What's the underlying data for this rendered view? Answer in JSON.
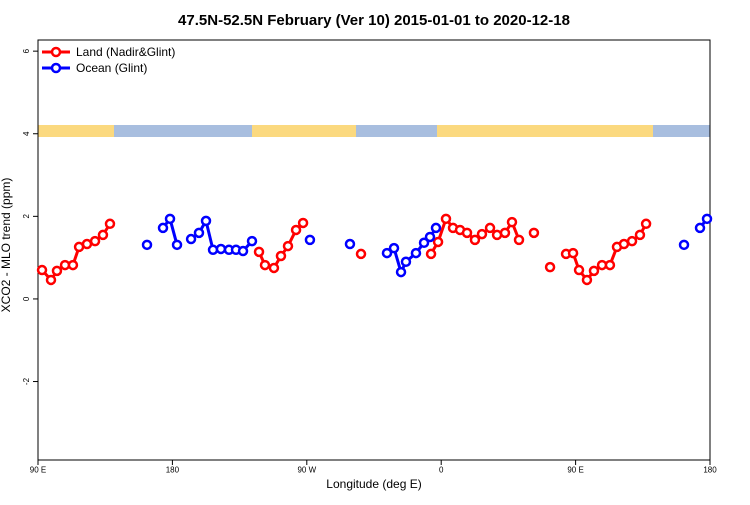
{
  "chart_data": {
    "type": "line",
    "title": "47.5N-52.5N February (Ver 10)   2015-01-01 to 2020-12-18",
    "x_label": "Longitude (deg E)",
    "y_label": "XCO2 - MLO trend (ppm)",
    "xlim": [
      90,
      540
    ],
    "ylim": [
      -3.9,
      6.27
    ],
    "xticks": [
      {
        "value": 90,
        "label": "90 E"
      },
      180,
      {
        "value": 270,
        "label": "90 W"
      },
      {
        "value": 360,
        "label": "0"
      },
      {
        "value": 450,
        "label": "90 E"
      },
      {
        "value": 540,
        "label": "180"
      }
    ],
    "yticks": [
      -2,
      0,
      2,
      4,
      6
    ],
    "legend": "top-left",
    "series": [
      {
        "name": "Land (Nadir&Glint)",
        "color": "#ff0000",
        "x": [
          92.7,
          98.7,
          102.7,
          108.1,
          113.4,
          117.5,
          122.8,
          128.2,
          133.5,
          138.2,
          null,
          238.0,
          242.0,
          248.0,
          252.7,
          257.4,
          262.8,
          267.5,
          null,
          306.3,
          null,
          353.2,
          357.9,
          363.2,
          367.9,
          372.6,
          377.3,
          382.6,
          387.3,
          392.7,
          397.4,
          402.7,
          407.4,
          412.1,
          null,
          422.1,
          null,
          432.9,
          null,
          443.6,
          448.3,
          452.3,
          457.6,
          462.3,
          467.7,
          473.0,
          477.7,
          482.4,
          487.8,
          493.1,
          497.2
        ],
        "values": [
          0.7,
          0.46,
          0.68,
          0.82,
          0.82,
          1.26,
          1.33,
          1.4,
          1.55,
          1.82,
          null,
          1.14,
          0.82,
          0.75,
          1.04,
          1.28,
          1.67,
          1.84,
          null,
          1.09,
          null,
          1.09,
          1.38,
          1.94,
          1.72,
          1.67,
          1.6,
          1.43,
          1.57,
          1.72,
          1.55,
          1.6,
          1.86,
          1.43,
          null,
          1.6,
          null,
          0.77,
          null,
          1.09,
          1.11,
          0.7,
          0.46,
          0.68,
          0.82,
          0.82,
          1.26,
          1.33,
          1.4,
          1.55,
          1.82
        ]
      },
      {
        "name": "Ocean (Glint)",
        "color": "#0000ff",
        "x": [
          163.0,
          null,
          173.7,
          178.4,
          183.1,
          null,
          192.5,
          197.8,
          202.5,
          207.2,
          212.5,
          217.9,
          222.6,
          227.3,
          233.3,
          null,
          272.1,
          null,
          298.9,
          null,
          323.7,
          328.4,
          333.1,
          336.4,
          343.1,
          348.5,
          352.5,
          356.5,
          null,
          522.6,
          null,
          533.3,
          538.0
        ],
        "values": [
          1.31,
          null,
          1.72,
          1.94,
          1.31,
          null,
          1.45,
          1.6,
          1.89,
          1.19,
          1.21,
          1.19,
          1.19,
          1.16,
          1.4,
          null,
          1.43,
          null,
          1.33,
          null,
          1.11,
          1.23,
          0.65,
          0.9,
          1.11,
          1.36,
          1.5,
          1.72,
          null,
          1.31,
          null,
          1.72,
          1.94
        ]
      }
    ]
  }
}
